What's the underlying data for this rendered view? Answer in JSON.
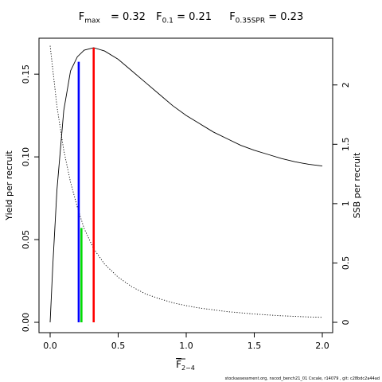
{
  "chart_data": {
    "type": "line",
    "title_parts": [
      {
        "label": "F",
        "sub": "max",
        "value": "= 0.32"
      },
      {
        "label": "F",
        "sub": "0.1",
        "value": "= 0.21"
      },
      {
        "label": "F",
        "sub": "0.35SPR",
        "value": "= 0.23"
      }
    ],
    "xlabel": "F",
    "xlabel_sub": "2−4",
    "ylabel": "Yield per recruit",
    "y2label": "SSB per recruit",
    "xlim": [
      0,
      2.0
    ],
    "ylim": [
      0,
      0.165
    ],
    "y2lim": [
      0,
      2.3
    ],
    "x_ticks": [
      "0.0",
      "0.5",
      "1.0",
      "1.5",
      "2.0"
    ],
    "y_ticks": [
      "0.00",
      "0.05",
      "0.10",
      "0.15"
    ],
    "y2_ticks": [
      "0",
      "0.5",
      "1",
      "1.5",
      "2"
    ],
    "series": [
      {
        "axis": "left",
        "style": "solid",
        "color": "#000000",
        "x": [
          0,
          0.02,
          0.05,
          0.1,
          0.15,
          0.2,
          0.25,
          0.32,
          0.4,
          0.5,
          0.6,
          0.7,
          0.8,
          0.9,
          1.0,
          1.1,
          1.2,
          1.3,
          1.4,
          1.5,
          1.6,
          1.7,
          1.8,
          1.9,
          2.0
        ],
        "y": [
          0,
          0.035,
          0.08,
          0.128,
          0.152,
          0.1605,
          0.1645,
          0.166,
          0.164,
          0.159,
          0.152,
          0.145,
          0.138,
          0.131,
          0.125,
          0.12,
          0.115,
          0.111,
          0.107,
          0.104,
          0.1015,
          0.099,
          0.097,
          0.0955,
          0.0945
        ]
      },
      {
        "axis": "right",
        "style": "dotted",
        "color": "#000000",
        "x": [
          0,
          0.05,
          0.1,
          0.15,
          0.2,
          0.25,
          0.32,
          0.4,
          0.5,
          0.6,
          0.7,
          0.8,
          0.9,
          1.0,
          1.1,
          1.2,
          1.3,
          1.4,
          1.5,
          1.6,
          1.7,
          1.8,
          1.9,
          2.0
        ],
        "y": [
          2.33,
          1.82,
          1.45,
          1.18,
          0.97,
          0.79,
          0.62,
          0.49,
          0.38,
          0.3,
          0.24,
          0.2,
          0.165,
          0.14,
          0.12,
          0.105,
          0.09,
          0.08,
          0.07,
          0.062,
          0.055,
          0.05,
          0.045,
          0.042
        ]
      }
    ],
    "reference_lines": [
      {
        "name": "F0.1",
        "x": 0.21,
        "y_from": 0,
        "y_to": 0.1575,
        "color": "#0000ff"
      },
      {
        "name": "Fmax",
        "x": 0.32,
        "y_from": 0,
        "y_to": 0.166,
        "color": "#ff0000"
      },
      {
        "name": "F0.35SPR",
        "x": 0.23,
        "y_from": 0,
        "y_to": 0.057,
        "color": "#00dd00"
      }
    ],
    "grid": false,
    "legend": "none"
  },
  "footer": "stockassessment.org, nscod_bench21_01 Cscale, r14079 , git: c28bdc2a44ad"
}
